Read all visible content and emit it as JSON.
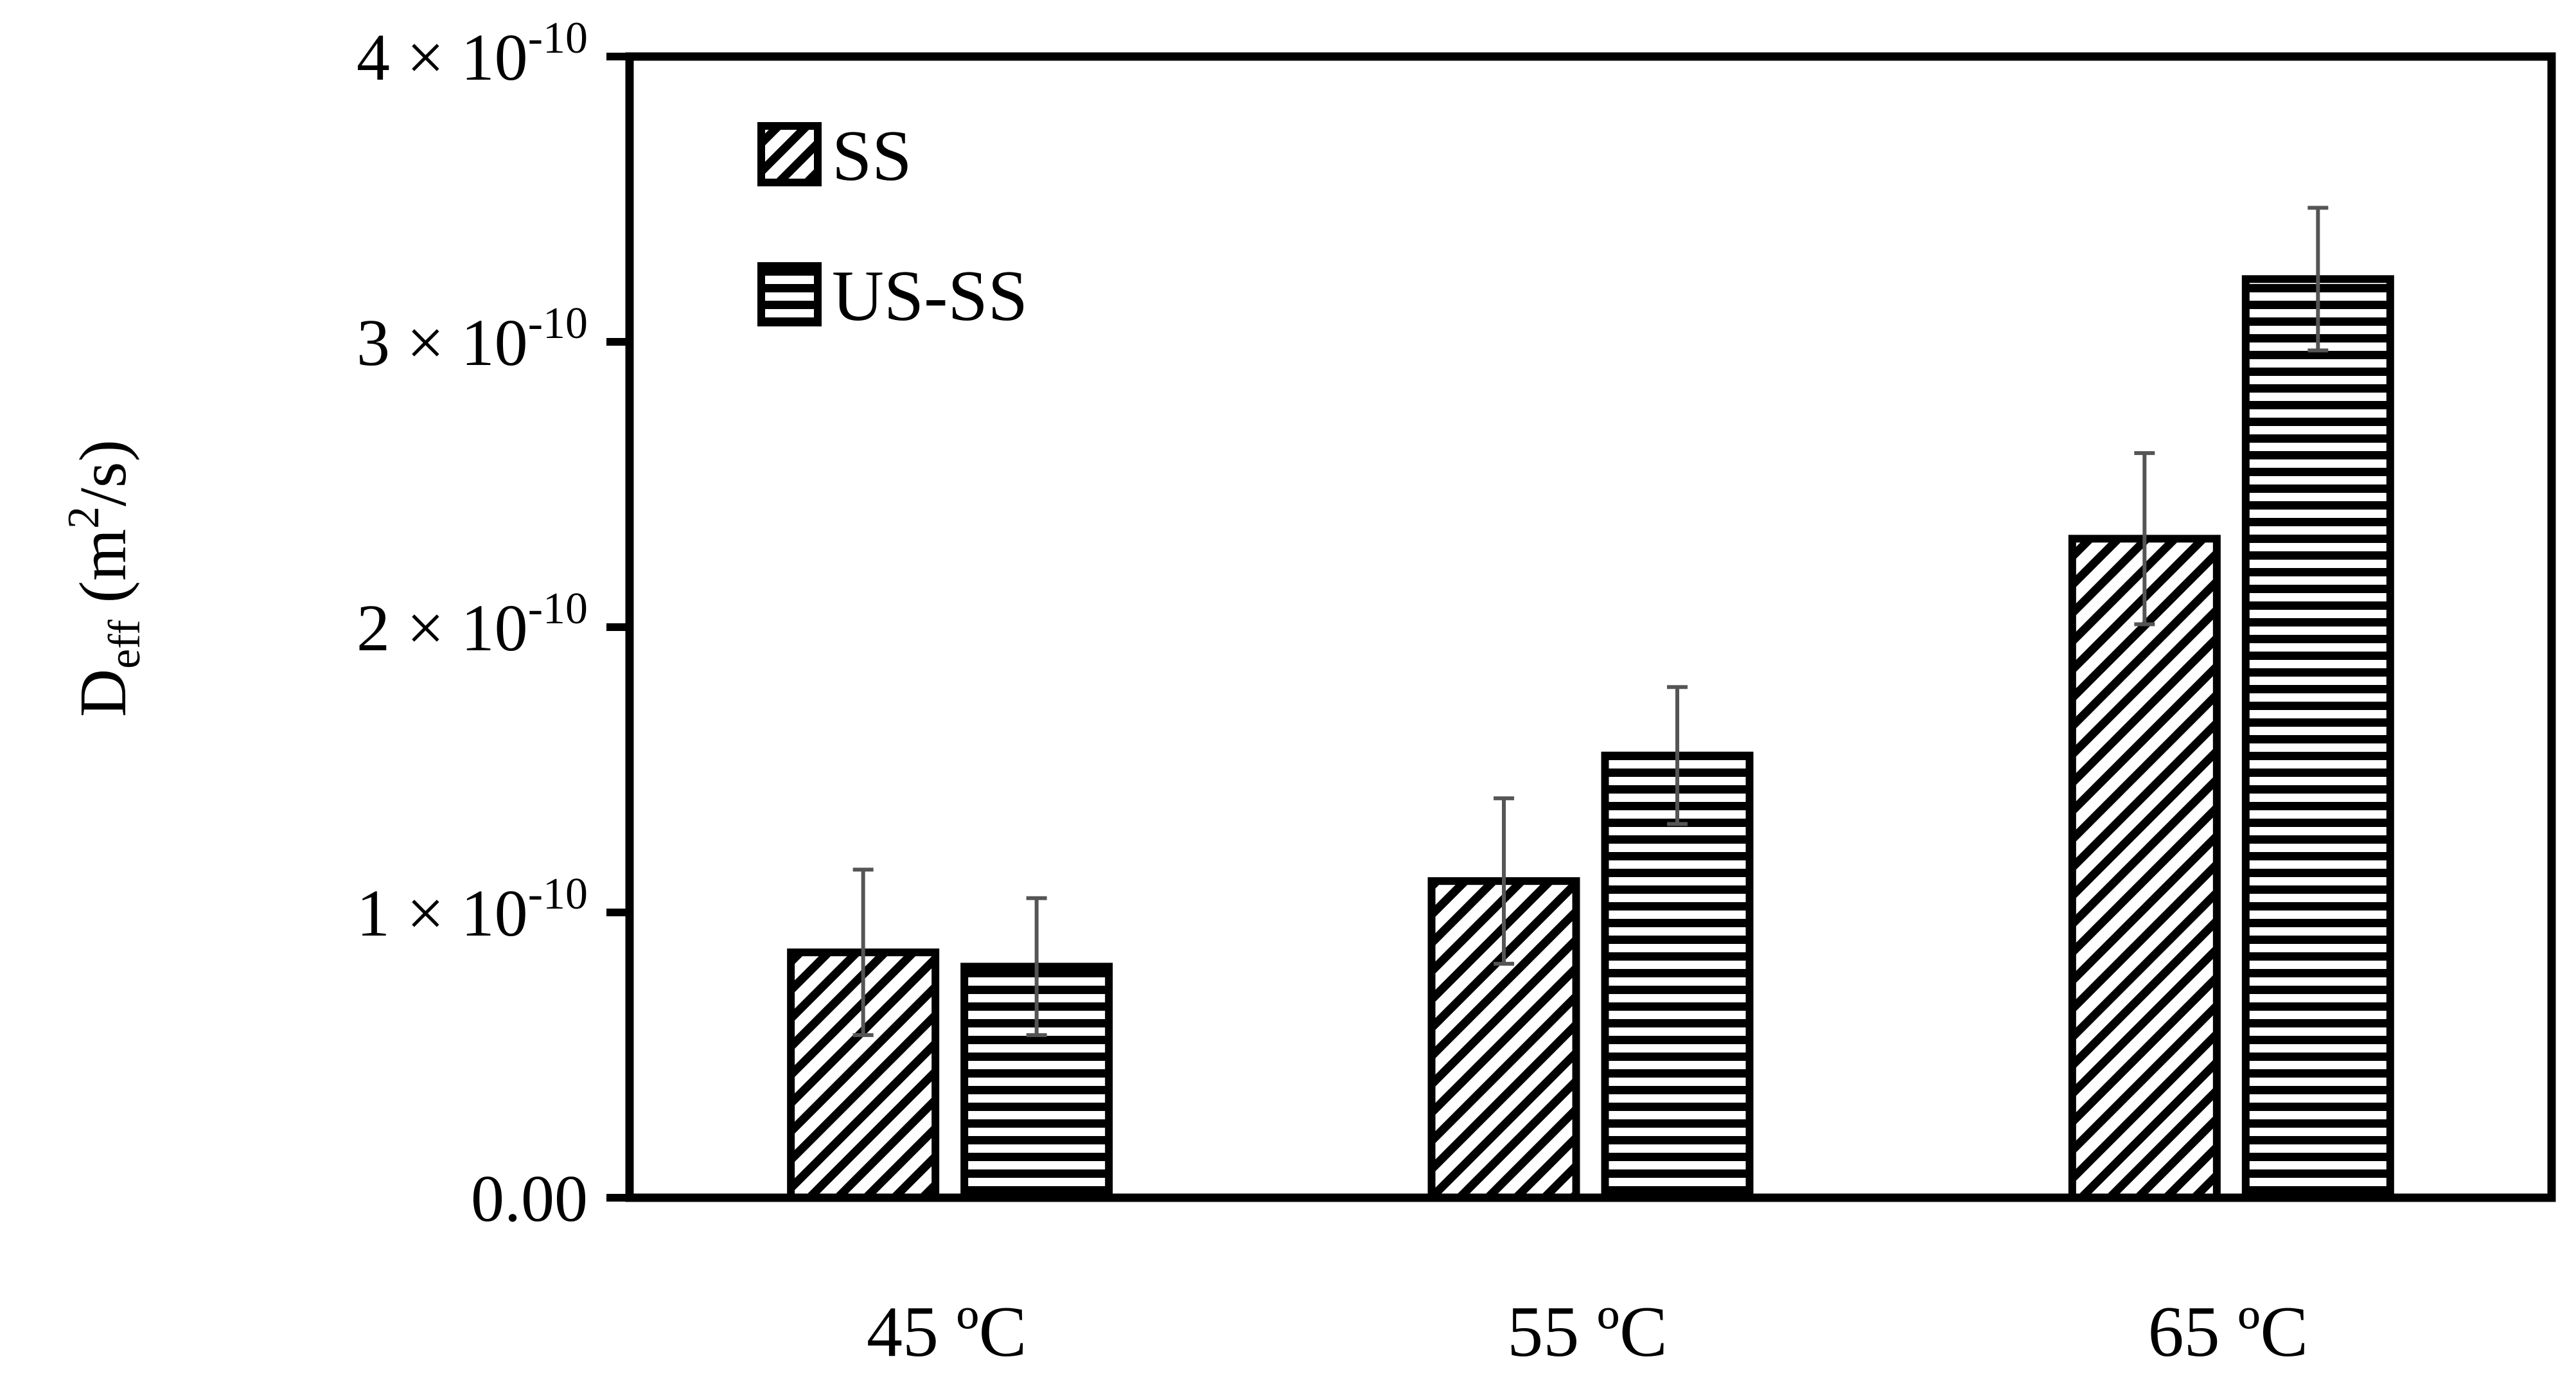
{
  "chart_data": {
    "type": "bar",
    "categories": [
      "45 ºC",
      "55 ºC",
      "65 ºC"
    ],
    "series": [
      {
        "name": "SS",
        "pattern": "diagonal-hatch",
        "values": [
          8.6e-11,
          1.11e-10,
          2.31e-10
        ],
        "errors": [
          2.9e-11,
          2.9e-11,
          3e-11
        ]
      },
      {
        "name": "US-SS",
        "pattern": "horizontal-stripes",
        "values": [
          8.1e-11,
          1.55e-10,
          3.22e-10
        ],
        "errors": [
          2.4e-11,
          2.4e-11,
          2.5e-11
        ]
      }
    ],
    "ylim": [
      0,
      4e-10
    ],
    "yticks": [
      {
        "value": 0,
        "label": "0.00",
        "mantissa": "",
        "exponent": ""
      },
      {
        "value": 1e-10,
        "label": "",
        "mantissa": "1 × 10",
        "exponent": "-10"
      },
      {
        "value": 2e-10,
        "label": "",
        "mantissa": "2 × 10",
        "exponent": "-10"
      },
      {
        "value": 3e-10,
        "label": "",
        "mantissa": "3 × 10",
        "exponent": "-10"
      },
      {
        "value": 4e-10,
        "label": "",
        "mantissa": "4 × 10",
        "exponent": "-10"
      }
    ],
    "ylabel": {
      "main": "D",
      "sub": "eff",
      "unit_open": " (m",
      "unit_sup": "2",
      "unit_close": "/s)"
    },
    "xlabel": "",
    "legend_placement": "top-left",
    "grid": false,
    "colors": {
      "frame": "#000000",
      "error_bar": "#555555",
      "fill": "#ffffff"
    }
  }
}
